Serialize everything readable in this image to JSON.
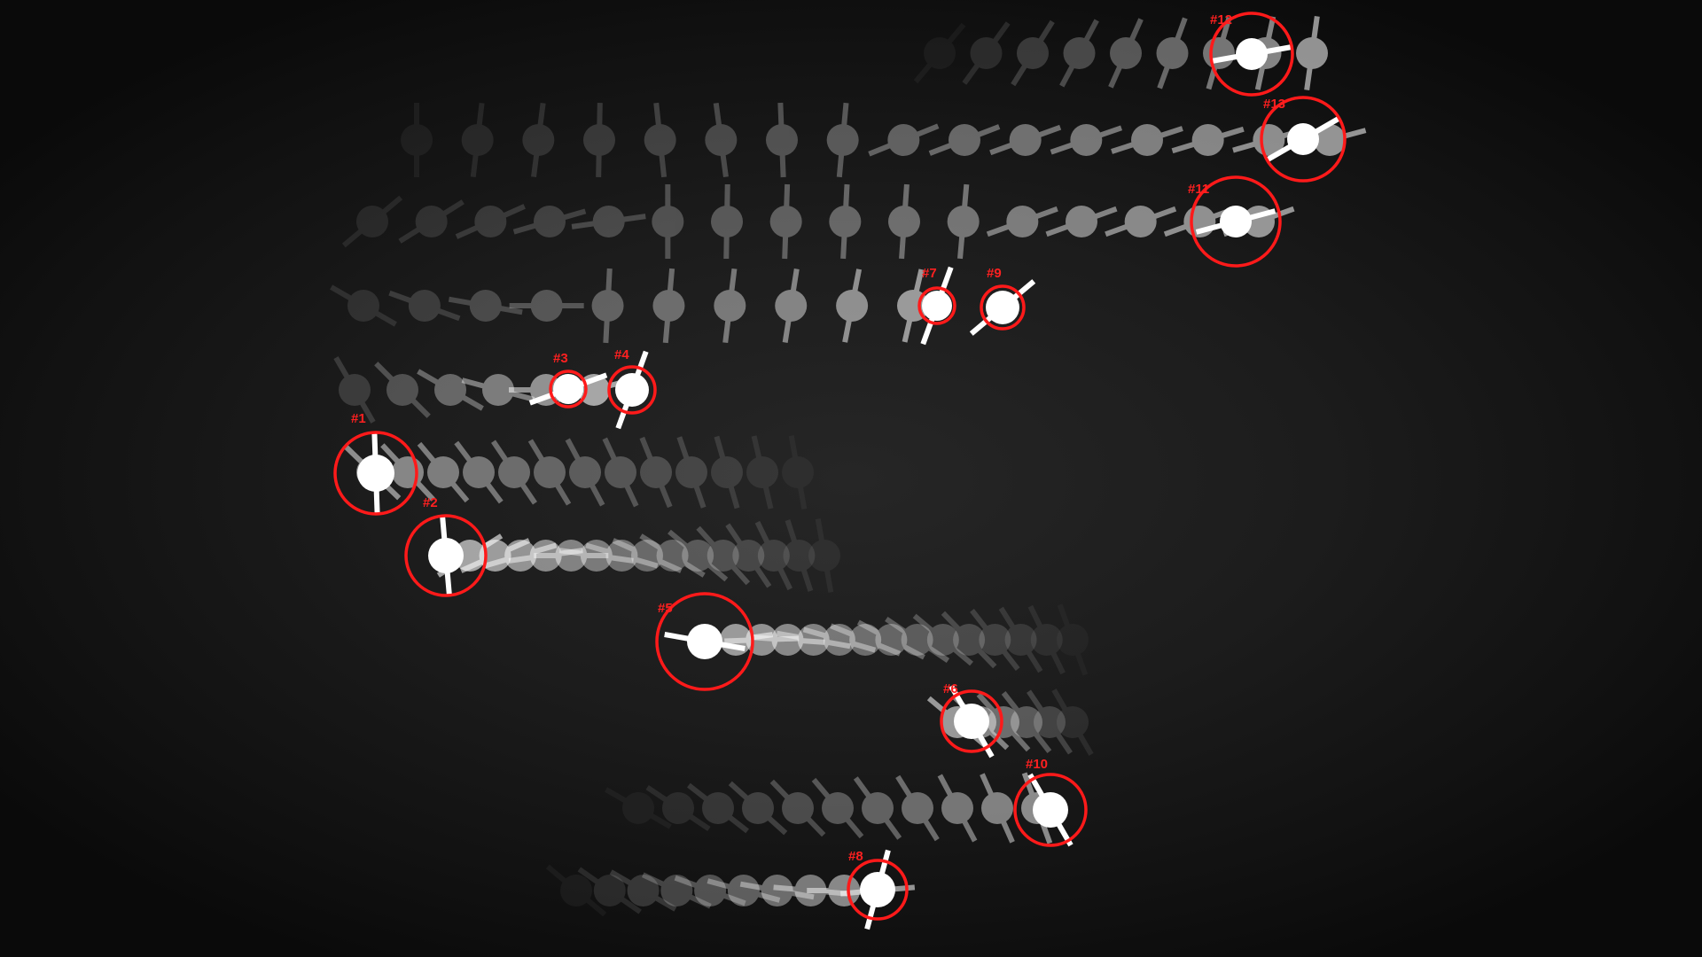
{
  "image": {
    "colors": {
      "background": "#1c1c1c",
      "ghost": "#ffffff",
      "marker": "#ff1a1a",
      "label": "#ff2020"
    },
    "markers": [
      {
        "id": "m12",
        "label": "#12"
      },
      {
        "id": "m13",
        "label": "#13"
      },
      {
        "id": "m11",
        "label": "#11"
      },
      {
        "id": "m7",
        "label": "#7"
      },
      {
        "id": "m9",
        "label": "#9"
      },
      {
        "id": "m3",
        "label": "#3"
      },
      {
        "id": "m4",
        "label": "#4"
      },
      {
        "id": "m1",
        "label": "#1"
      },
      {
        "id": "m2",
        "label": "#2"
      },
      {
        "id": "m5",
        "label": "#5"
      },
      {
        "id": "m6",
        "label": "#6"
      },
      {
        "id": "m10",
        "label": "#10"
      },
      {
        "id": "m8",
        "label": "#8"
      }
    ]
  }
}
